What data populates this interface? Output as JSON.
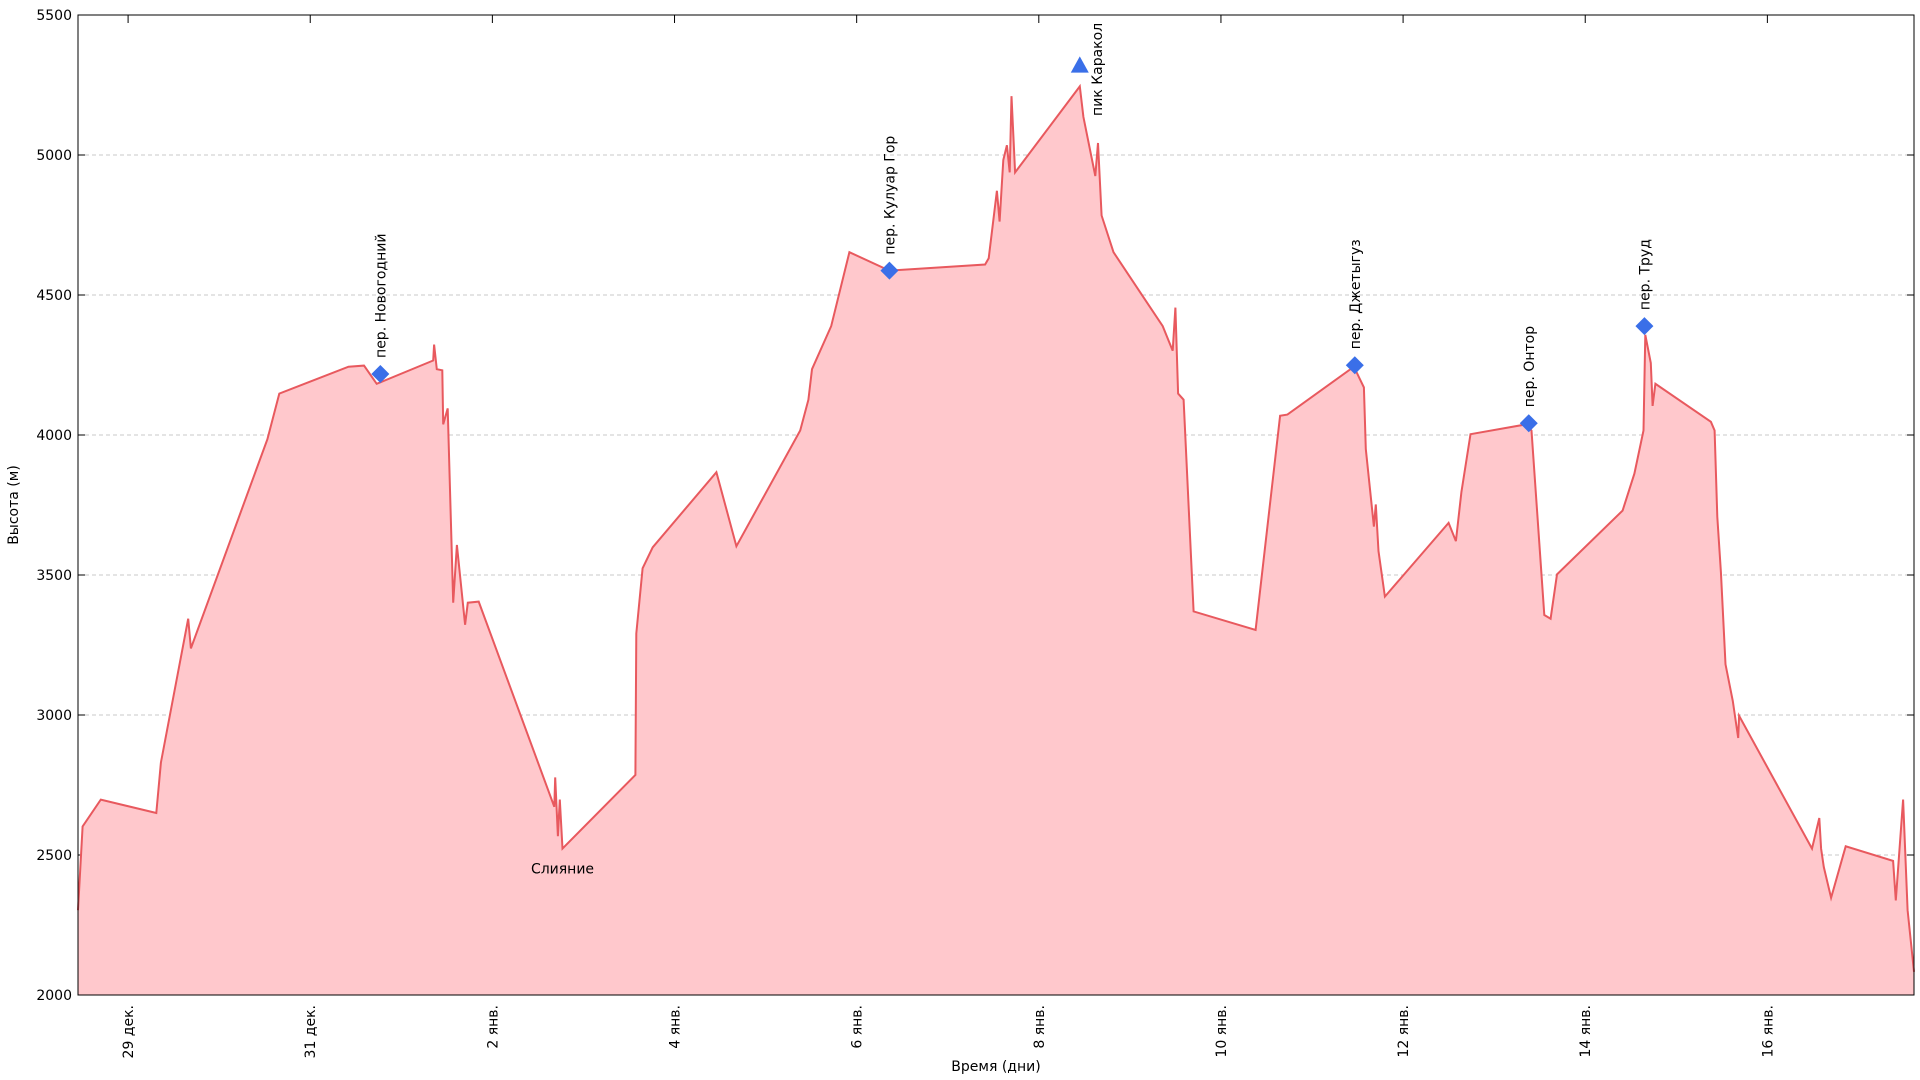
{
  "chart_data": {
    "type": "area",
    "xlabel": "Время (дни)",
    "ylabel": "Высота (м)",
    "xlim": [
      -0.55,
      19.61
    ],
    "ylim": [
      2000,
      5500
    ],
    "xticks": [
      {
        "value": 0,
        "label": "29 дек."
      },
      {
        "value": 2,
        "label": "31 дек."
      },
      {
        "value": 4,
        "label": "2 янв."
      },
      {
        "value": 6,
        "label": "4 янв."
      },
      {
        "value": 8,
        "label": "6 янв."
      },
      {
        "value": 10,
        "label": "8 янв."
      },
      {
        "value": 12,
        "label": "10 янв."
      },
      {
        "value": 14,
        "label": "12 янв."
      },
      {
        "value": 16,
        "label": "14 янв."
      },
      {
        "value": 18,
        "label": "16 янв."
      }
    ],
    "yticks": [
      2000,
      2500,
      3000,
      3500,
      4000,
      4500,
      5000,
      5500
    ],
    "grid": true,
    "color": "#e8595e",
    "fill": "#ffc8cc",
    "marker_color": "#3a6fe8",
    "x": [
      -0.55,
      -0.5,
      -0.3,
      0.31,
      0.36,
      0.66,
      0.69,
      1.53,
      1.66,
      2.42,
      2.59,
      2.73,
      3.35,
      3.36,
      3.39,
      3.45,
      3.46,
      3.51,
      3.57,
      3.61,
      3.7,
      3.73,
      3.85,
      4.68,
      4.69,
      4.72,
      4.74,
      4.77,
      5.57,
      5.58,
      5.65,
      5.76,
      6.46,
      6.68,
      7.38,
      7.47,
      7.51,
      7.72,
      7.92,
      8.36,
      9.41,
      9.45,
      9.54,
      9.57,
      9.61,
      9.65,
      9.68,
      9.7,
      9.74,
      10.45,
      10.49,
      10.62,
      10.65,
      10.69,
      10.82,
      11.36,
      11.47,
      11.5,
      11.53,
      11.59,
      11.7,
      12.38,
      12.65,
      12.73,
      13.46,
      13.57,
      13.59,
      13.68,
      13.7,
      13.73,
      13.8,
      14.5,
      14.58,
      14.64,
      14.74,
      15.35,
      15.41,
      15.55,
      15.62,
      15.69,
      16.41,
      16.54,
      16.64,
      16.66,
      16.72,
      16.74,
      16.77,
      17.38,
      17.42,
      17.45,
      17.49,
      17.54,
      17.62,
      17.68,
      17.69,
      18.49,
      18.57,
      18.59,
      18.62,
      18.7,
      18.86,
      19.38,
      19.41,
      19.49,
      19.54,
      19.61
    ],
    "values": [
      2303,
      2602,
      2698,
      2650,
      2830,
      3344,
      3238,
      3985,
      4148,
      4244,
      4248,
      4183,
      4266,
      4323,
      4235,
      4231,
      4038,
      4095,
      3401,
      3607,
      3322,
      3401,
      3405,
      2672,
      2777,
      2567,
      2698,
      2523,
      2786,
      3291,
      3524,
      3599,
      3867,
      3603,
      4016,
      4126,
      4235,
      4389,
      4653,
      4587,
      4609,
      4631,
      4872,
      4762,
      4982,
      5035,
      4938,
      5210,
      4938,
      5245,
      5136,
      4925,
      5043,
      4784,
      4653,
      4389,
      4301,
      4455,
      4148,
      4126,
      3370,
      3304,
      4069,
      4073,
      4244,
      4170,
      3950,
      3673,
      3752,
      3585,
      3423,
      3686,
      3621,
      3796,
      4003,
      4038,
      4016,
      3357,
      3344,
      3502,
      3730,
      3862,
      4016,
      4358,
      4257,
      4104,
      4183,
      4047,
      4016,
      3708,
      3511,
      3181,
      3050,
      2918,
      2997,
      2523,
      2632,
      2523,
      2457,
      2347,
      2531,
      2479,
      2338,
      2698,
      2303,
      2083
    ],
    "markers": [
      {
        "label": "пер.  Новогодний",
        "x": 2.77,
        "y": 4218,
        "shape": "diamond"
      },
      {
        "label": "пер.  Кулуар Гор",
        "x": 8.36,
        "y": 4587,
        "shape": "diamond"
      },
      {
        "label": "пик Каракол",
        "x": 10.45,
        "y": 5320,
        "shape": "triangle"
      },
      {
        "label": "пер.  Джетыгуз",
        "x": 13.47,
        "y": 4249,
        "shape": "diamond"
      },
      {
        "label": "пер.  Онтор",
        "x": 15.38,
        "y": 4042,
        "shape": "diamond"
      },
      {
        "label": "пер.  Труд",
        "x": 16.65,
        "y": 4389,
        "shape": "diamond"
      }
    ],
    "annotations": [
      {
        "text": "Слияние",
        "x": 4.77,
        "y": 2523
      }
    ]
  }
}
